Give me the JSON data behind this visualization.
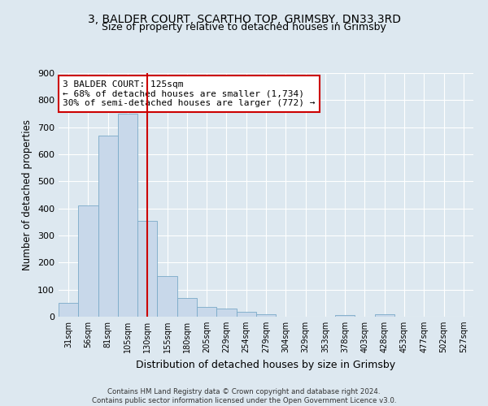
{
  "title": "3, BALDER COURT, SCARTHO TOP, GRIMSBY, DN33 3RD",
  "subtitle": "Size of property relative to detached houses in Grimsby",
  "xlabel": "Distribution of detached houses by size in Grimsby",
  "ylabel": "Number of detached properties",
  "bar_labels": [
    "31sqm",
    "56sqm",
    "81sqm",
    "105sqm",
    "130sqm",
    "155sqm",
    "180sqm",
    "205sqm",
    "229sqm",
    "254sqm",
    "279sqm",
    "304sqm",
    "329sqm",
    "353sqm",
    "378sqm",
    "403sqm",
    "428sqm",
    "453sqm",
    "477sqm",
    "502sqm",
    "527sqm"
  ],
  "bar_heights": [
    50,
    410,
    670,
    750,
    355,
    150,
    70,
    37,
    30,
    18,
    10,
    0,
    0,
    0,
    5,
    0,
    9,
    0,
    0,
    0,
    0
  ],
  "bar_color": "#c8d8ea",
  "bar_edge_color": "#7aaac8",
  "vline_color": "#cc0000",
  "vline_pos": 4.5,
  "annotation_title": "3 BALDER COURT: 125sqm",
  "annotation_line1": "← 68% of detached houses are smaller (1,734)",
  "annotation_line2": "30% of semi-detached houses are larger (772) →",
  "annotation_box_color": "#ffffff",
  "annotation_box_edge": "#cc0000",
  "ylim": [
    0,
    900
  ],
  "yticks": [
    0,
    100,
    200,
    300,
    400,
    500,
    600,
    700,
    800,
    900
  ],
  "bg_color": "#dde8f0",
  "plot_bg_color": "#dde8f0",
  "footer_line1": "Contains HM Land Registry data © Crown copyright and database right 2024.",
  "footer_line2": "Contains public sector information licensed under the Open Government Licence v3.0.",
  "title_fontsize": 10,
  "subtitle_fontsize": 9,
  "xlabel_fontsize": 9,
  "ylabel_fontsize": 8.5
}
